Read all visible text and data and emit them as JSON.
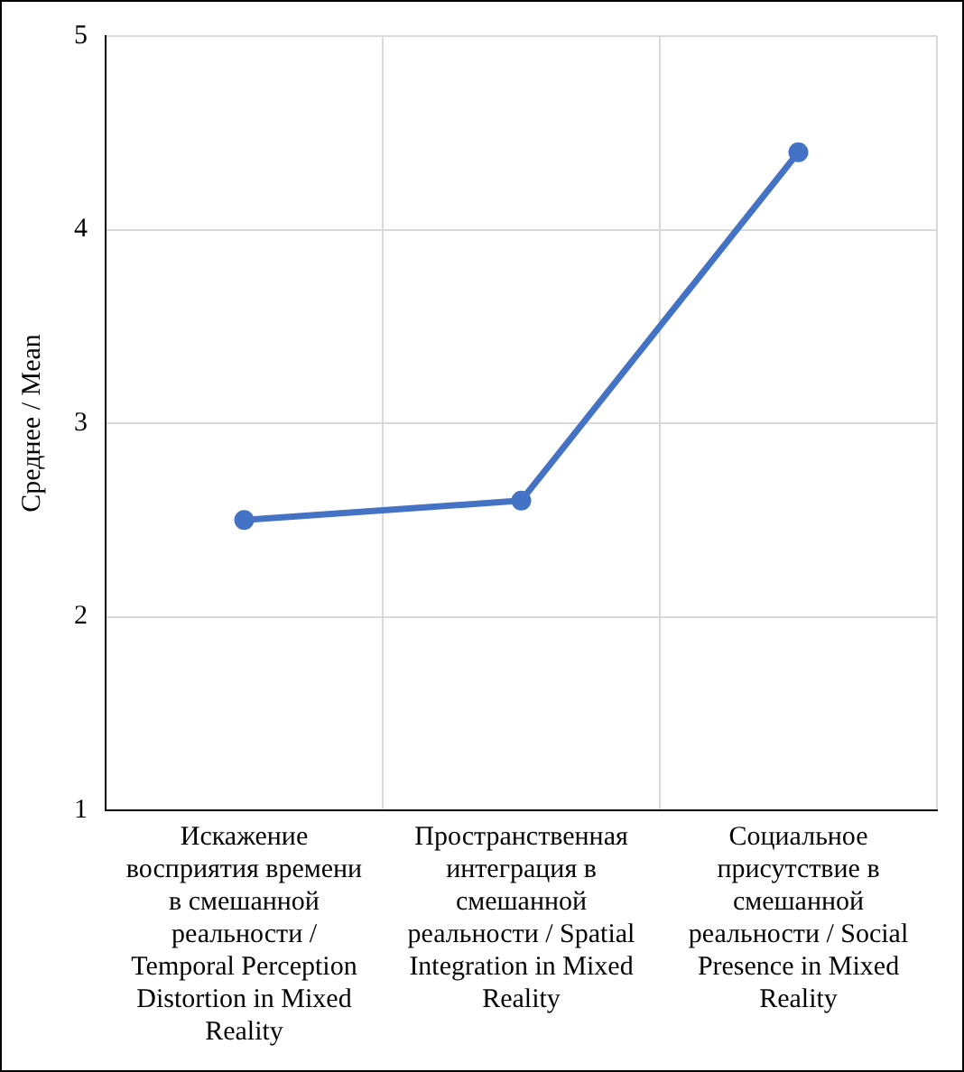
{
  "chart_data": {
    "type": "line",
    "ylabel": "Среднее / Mean",
    "categories": [
      "Искажение восприятия времени в смешанной реальности / Temporal Perception Distortion in Mixed Reality",
      "Пространственная интеграция в смешанной реальности / Spatial Integration in Mixed Reality",
      "Социальное присутствие в смешанной реальности / Social Presence in Mixed Reality"
    ],
    "series": [
      {
        "color": "#4472c4",
        "values": [
          2.5,
          2.6,
          4.4
        ]
      }
    ],
    "ylim": [
      1,
      5
    ],
    "yticks": [
      1,
      2,
      3,
      4,
      5
    ],
    "grid": true,
    "legend": false,
    "marker": "circle",
    "line_style": "solid"
  }
}
